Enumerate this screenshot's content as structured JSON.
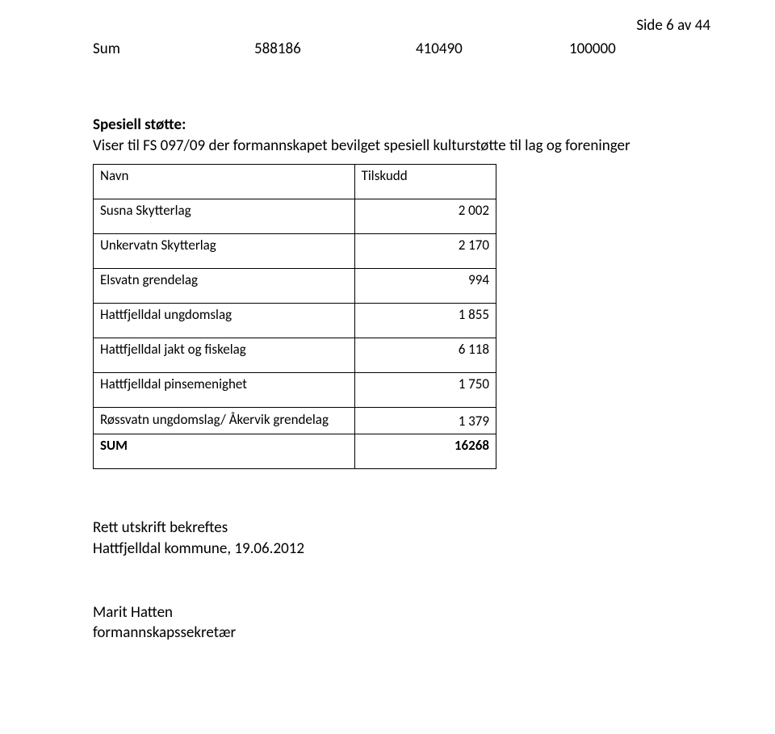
{
  "page_number": "Side 6 av 44",
  "sum_line": {
    "label": "Sum",
    "val1": "588186",
    "val2": "410490",
    "val3": "100000"
  },
  "intro": {
    "heading": "Spesiell støtte:",
    "text": "Viser til FS 097/09 der formannskapet bevilget spesiell kulturstøtte til lag og foreninger"
  },
  "table": {
    "headers": {
      "name": "Navn",
      "amount": "Tilskudd"
    },
    "rows": [
      {
        "name": "Susna Skytterlag",
        "amount": "2 002"
      },
      {
        "name": "Unkervatn Skytterlag",
        "amount": "2 170"
      },
      {
        "name": "Elsvatn grendelag",
        "amount": "994"
      },
      {
        "name": "Hattfjelldal ungdomslag",
        "amount": "1 855"
      },
      {
        "name": "Hattfjelldal jakt og fiskelag",
        "amount": "6 118"
      },
      {
        "name": "Hattfjelldal pinsemenighet",
        "amount": "1 750"
      },
      {
        "name": "Røssvatn ungdomslag/ Åkervik grendelag",
        "amount": "1 379"
      }
    ],
    "sum": {
      "label": "SUM",
      "value": "16268"
    }
  },
  "footer": {
    "line1": "Rett utskrift bekreftes",
    "line2": "Hattfjelldal kommune, 19.06.2012"
  },
  "signature": {
    "name": "Marit Hatten",
    "title": "formannskapssekretær"
  }
}
